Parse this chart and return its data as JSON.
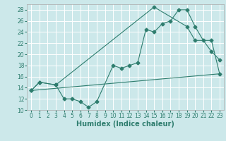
{
  "title": "",
  "xlabel": "Humidex (Indice chaleur)",
  "bg_color": "#cce8ea",
  "grid_color": "#ffffff",
  "line_color": "#2e7d6e",
  "xlim": [
    -0.5,
    23.5
  ],
  "ylim": [
    10,
    29
  ],
  "xticks": [
    0,
    1,
    2,
    3,
    4,
    5,
    6,
    7,
    8,
    9,
    10,
    11,
    12,
    13,
    14,
    15,
    16,
    17,
    18,
    19,
    20,
    21,
    22,
    23
  ],
  "yticks": [
    10,
    12,
    14,
    16,
    18,
    20,
    22,
    24,
    26,
    28
  ],
  "line1_x": [
    0,
    1,
    3,
    4,
    5,
    6,
    7,
    8,
    10,
    11,
    12,
    13,
    14,
    15,
    16,
    17,
    18,
    19,
    20,
    21,
    22,
    23
  ],
  "line1_y": [
    13.5,
    15.0,
    14.5,
    12.0,
    12.0,
    11.5,
    10.5,
    11.5,
    18.0,
    17.5,
    18.0,
    18.5,
    24.5,
    24.0,
    25.5,
    26.0,
    28.0,
    28.0,
    25.0,
    22.5,
    20.5,
    19.0
  ],
  "line2_x": [
    0,
    1,
    3,
    15,
    19,
    20,
    22,
    23
  ],
  "line2_y": [
    13.5,
    15.0,
    14.5,
    28.5,
    25.0,
    22.5,
    22.5,
    16.5
  ],
  "line3_x": [
    0,
    23
  ],
  "line3_y": [
    13.5,
    16.5
  ],
  "xlabel_fontsize": 7,
  "tick_fontsize": 5.5
}
